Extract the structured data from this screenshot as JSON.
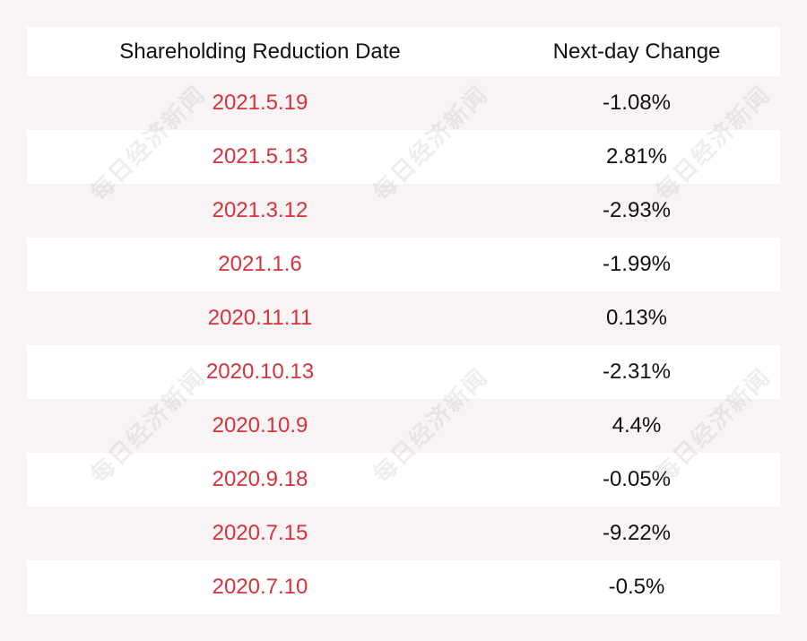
{
  "chart_data": {
    "type": "table",
    "columns": [
      "Shareholding Reduction Date",
      "Next-day Change"
    ],
    "rows": [
      [
        "2021.5.19",
        "-1.08%"
      ],
      [
        "2021.5.13",
        "2.81%"
      ],
      [
        "2021.3.12",
        "-2.93%"
      ],
      [
        "2021.1.6",
        "-1.99%"
      ],
      [
        "2020.11.11",
        "0.13%"
      ],
      [
        "2020.10.13",
        "-2.31%"
      ],
      [
        "2020.10.9",
        "4.4%"
      ],
      [
        "2020.9.18",
        "-0.05%"
      ],
      [
        "2020.7.15",
        "-9.22%"
      ],
      [
        "2020.7.10",
        "-0.5%"
      ]
    ]
  },
  "watermark": {
    "text": "每日经济新闻"
  },
  "colors": {
    "background": "#f8f4f5",
    "date_text": "#d8323a",
    "value_text": "#111111",
    "header_row": "#ffffff"
  }
}
